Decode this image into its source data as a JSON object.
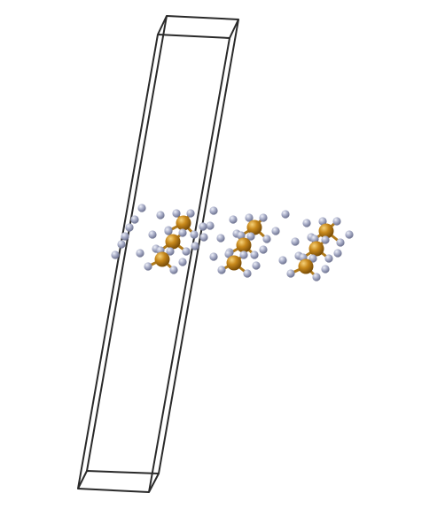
{
  "figure": {
    "type": "crystal-structure",
    "background_color": "#ffffff",
    "cell_edge_color": "#2a2a2a",
    "bond_color": "#b07a1a",
    "atoms": [
      {
        "element": "metal",
        "color": "#c8891c",
        "highlight": "#f6d27a",
        "shadow": "#7a4d07"
      },
      {
        "element": "nonmetal",
        "color": "#a9aec8",
        "highlight": "#eef0f8",
        "shadow": "#6e7390"
      }
    ],
    "cell": {
      "edges_visible": 12
    },
    "clusters": 3,
    "layers_per_cluster": 3
  }
}
